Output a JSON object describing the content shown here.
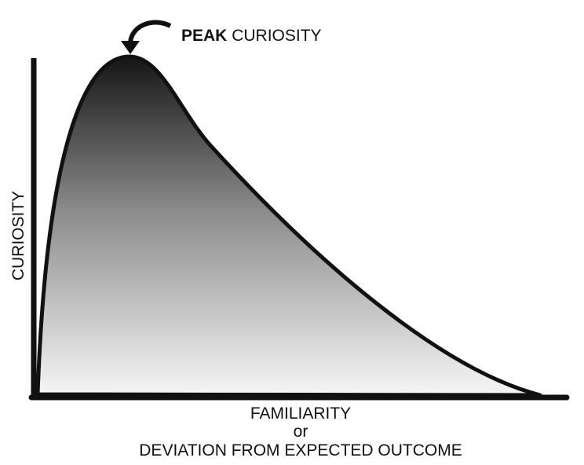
{
  "annotation": {
    "emphasis": "PEAK",
    "text": "CURIOSITY"
  },
  "y_axis_label": "CURIOSITY",
  "x_axis_label": {
    "lines": [
      "FAMILIARITY",
      "or",
      "DEVIATION FROM EXPECTED OUTCOME"
    ]
  }
}
